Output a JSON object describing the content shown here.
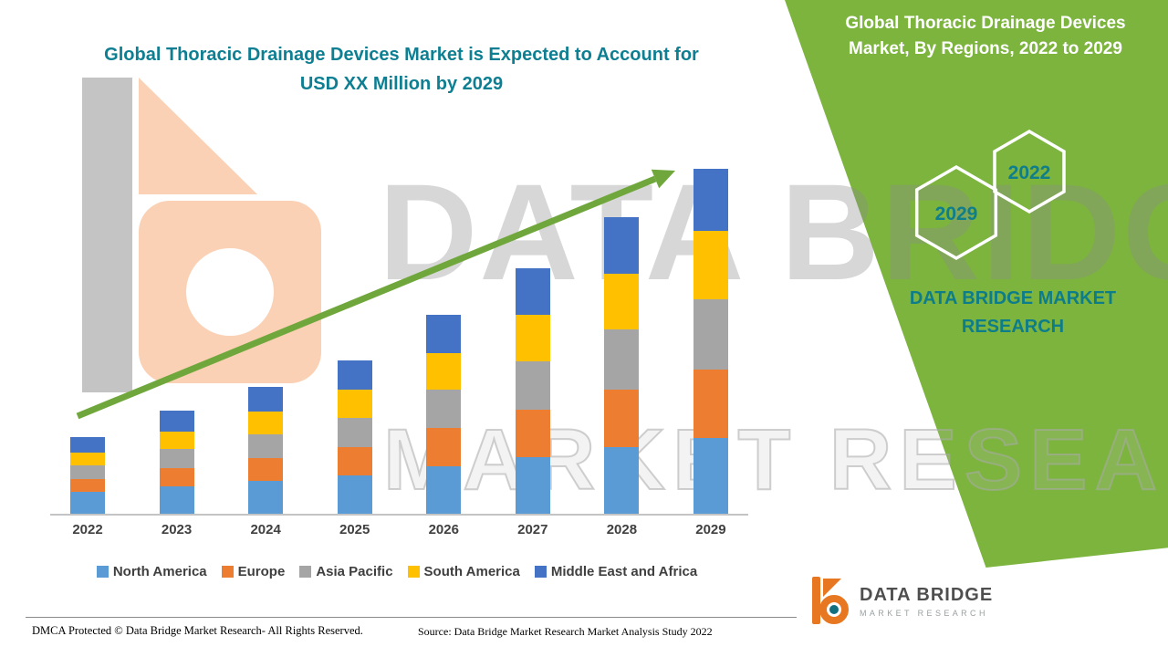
{
  "header": {
    "left_title_line1": "Global Thoracic Drainage Devices Market is Expected to Account for",
    "left_title_line2": "USD XX Million by 2029"
  },
  "right_panel": {
    "bg_color": "#7CB43E",
    "title_line1": "Global Thoracic Drainage Devices",
    "title_line2": "Market, By Regions, 2022 to 2029",
    "hexagons": [
      {
        "label": "2029"
      },
      {
        "label": "2022"
      }
    ],
    "brand_line1": "DATA BRIDGE MARKET",
    "brand_line2": "RESEARCH"
  },
  "watermark": {
    "line1": "DATA BRIDGE",
    "line2": "MARKET RESEARCH"
  },
  "chart_data": {
    "type": "bar",
    "stacked": true,
    "title": "Global Thoracic Drainage Devices Market is Expected to Account for USD XX Million by 2029",
    "categories": [
      "2022",
      "2023",
      "2024",
      "2025",
      "2026",
      "2027",
      "2028",
      "2029"
    ],
    "series": [
      {
        "name": "North America",
        "color": "#5B9BD5",
        "values": [
          24,
          30,
          36,
          43,
          53,
          63,
          74,
          84
        ]
      },
      {
        "name": "Europe",
        "color": "#ED7D31",
        "values": [
          15,
          21,
          26,
          31,
          42,
          52,
          64,
          76
        ]
      },
      {
        "name": "Asia Pacific",
        "color": "#A5A5A5",
        "values": [
          15,
          21,
          26,
          32,
          42,
          54,
          66,
          78
        ]
      },
      {
        "name": "South America",
        "color": "#FFC000",
        "values": [
          14,
          19,
          25,
          31,
          41,
          51,
          62,
          75
        ]
      },
      {
        "name": "Middle East and Africa",
        "color": "#4472C4",
        "values": [
          17,
          23,
          28,
          33,
          42,
          52,
          62,
          69
        ]
      }
    ],
    "xlabel": "",
    "ylabel": "",
    "ylim": [
      0,
      400
    ],
    "value_axis_visible": false,
    "gridlines": false,
    "legend_position": "bottom",
    "trend_arrow": {
      "present": true,
      "color": "#70A73C",
      "direction": "up-right"
    }
  },
  "footer": {
    "dmca": "DMCA Protected © Data Bridge Market Research- All Rights Reserved.",
    "source": "Source: Data Bridge Market Research Market Analysis Study 2022"
  },
  "logo": {
    "name": "DATA BRIDGE",
    "subtitle": "MARKET RESEARCH"
  }
}
